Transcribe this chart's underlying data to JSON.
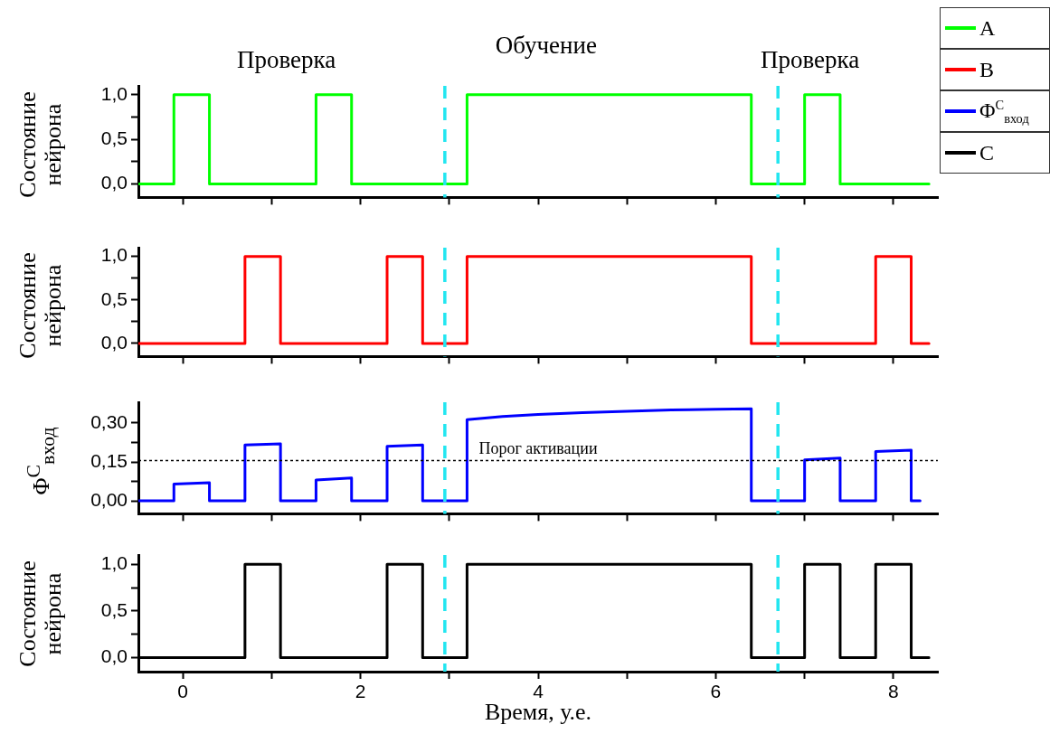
{
  "chart_data": [
    {
      "type": "step",
      "ylabel": "Состояние нейрона",
      "legend": "top right",
      "tick_labels": "y",
      "xlim": [
        -0.5,
        8.5
      ],
      "xticks": [
        0,
        {
          "value": 1,
          "label": null
        },
        2,
        {
          "value": 3,
          "label": null
        },
        4,
        {
          "value": 5,
          "label": null
        },
        6,
        {
          "value": 7,
          "label": null
        },
        8
      ],
      "ylim": [
        -0.15,
        1.1
      ],
      "yticks": [
        {
          "value": 0,
          "label": "0,0"
        },
        {
          "value": 0.25,
          "label": null
        },
        {
          "value": 0.5,
          "label": "0,5"
        },
        {
          "value": 0.75,
          "label": null
        },
        {
          "value": 1,
          "label": "1,0"
        }
      ],
      "series": [
        {
          "name": "A",
          "color": "#00ff00",
          "x": [
            -0.5,
            -0.1,
            0.3,
            1.5,
            1.9,
            3.2,
            6.4,
            7.0,
            7.4,
            8.4
          ],
          "values": [
            0,
            1,
            0,
            1,
            0,
            1,
            0,
            1,
            0,
            0
          ]
        }
      ],
      "ref_lines": [
        {
          "axis": "x",
          "value": 2.95,
          "color": "#22e6f0",
          "line_style": "dashed"
        },
        {
          "axis": "x",
          "value": 6.7,
          "color": "#22e6f0",
          "line_style": "dashed"
        }
      ],
      "annotations": [
        "Проверка",
        "Обучение",
        "Проверка"
      ]
    },
    {
      "type": "step",
      "ylabel": "Состояние нейрона",
      "legend": "top right",
      "tick_labels": "y",
      "xlim": [
        -0.5,
        8.5
      ],
      "xticks": [
        0,
        {
          "value": 1,
          "label": null
        },
        2,
        {
          "value": 3,
          "label": null
        },
        4,
        {
          "value": 5,
          "label": null
        },
        6,
        {
          "value": 7,
          "label": null
        },
        8
      ],
      "ylim": [
        -0.15,
        1.1
      ],
      "yticks": [
        {
          "value": 0,
          "label": "0,0"
        },
        {
          "value": 0.25,
          "label": null
        },
        {
          "value": 0.5,
          "label": "0,5"
        },
        {
          "value": 0.75,
          "label": null
        },
        {
          "value": 1,
          "label": "1,0"
        }
      ],
      "series": [
        {
          "name": "B",
          "color": "#ff0000",
          "x": [
            -0.5,
            0.7,
            1.1,
            2.3,
            2.7,
            3.2,
            6.4,
            7.8,
            8.2,
            8.4
          ],
          "values": [
            0,
            1,
            0,
            1,
            0,
            1,
            0,
            1,
            0,
            0
          ]
        }
      ],
      "ref_lines": [
        {
          "axis": "x",
          "value": 2.95,
          "color": "#22e6f0",
          "line_style": "dashed"
        },
        {
          "axis": "x",
          "value": 6.7,
          "color": "#22e6f0",
          "line_style": "dashed"
        }
      ]
    },
    {
      "type": "line",
      "ylabel": "Φ$^{C}$$_{вход}$",
      "legend": "top right",
      "tick_labels": "y",
      "xlim": [
        -0.5,
        8.5
      ],
      "xticks": [
        0,
        {
          "value": 1,
          "label": null
        },
        2,
        {
          "value": 3,
          "label": null
        },
        4,
        {
          "value": 5,
          "label": null
        },
        6,
        {
          "value": 7,
          "label": null
        },
        8
      ],
      "ylim": [
        -0.05,
        0.38
      ],
      "yticks": [
        {
          "value": 0,
          "label": "0,00"
        },
        {
          "value": 0.075,
          "label": null
        },
        {
          "value": 0.15,
          "label": "0,15"
        },
        {
          "value": 0.225,
          "label": null
        },
        {
          "value": 0.3,
          "label": "0,30"
        }
      ],
      "series": [
        {
          "name": "Φ$^{C}$$_{вход}$",
          "color": "#0000ff",
          "x": [
            -0.5,
            -0.1,
            -0.1,
            0.3,
            0.3,
            0.7,
            0.7,
            1.1,
            1.1,
            1.5,
            1.5,
            1.9,
            1.9,
            2.3,
            2.3,
            2.7,
            2.7,
            3.2,
            3.2,
            3.6,
            4.0,
            4.5,
            5.0,
            5.5,
            6.0,
            6.4,
            6.4,
            7.0,
            7.0,
            7.4,
            7.4,
            7.8,
            7.8,
            8.2,
            8.2,
            8.3
          ],
          "values": [
            0,
            0,
            0.065,
            0.07,
            0,
            0,
            0.215,
            0.22,
            0,
            0,
            0.08,
            0.088,
            0,
            0,
            0.21,
            0.215,
            0,
            0,
            0.313,
            0.325,
            0.333,
            0.34,
            0.345,
            0.35,
            0.353,
            0.355,
            0,
            0,
            0.158,
            0.165,
            0,
            0,
            0.19,
            0.195,
            0,
            0
          ]
        }
      ],
      "ref_lines": [
        {
          "axis": "x",
          "value": 2.95,
          "color": "#22e6f0",
          "line_style": "dashed"
        },
        {
          "axis": "x",
          "value": 6.7,
          "color": "#22e6f0",
          "line_style": "dashed"
        },
        {
          "axis": "y",
          "value": 0.155,
          "label": "Порог активации",
          "color": "#000000",
          "line_style": "dotted"
        }
      ]
    },
    {
      "type": "step",
      "ylabel": "Состояние нейрона",
      "xlabel": "Время, у.е.",
      "legend": "top right",
      "xlim": [
        -0.5,
        8.5
      ],
      "xticks": [
        0,
        {
          "value": 1,
          "label": null
        },
        2,
        {
          "value": 3,
          "label": null
        },
        4,
        {
          "value": 5,
          "label": null
        },
        6,
        {
          "value": 7,
          "label": null
        },
        8
      ],
      "ylim": [
        -0.15,
        1.1
      ],
      "yticks": [
        {
          "value": 0,
          "label": "0,0"
        },
        {
          "value": 0.25,
          "label": null
        },
        {
          "value": 0.5,
          "label": "0,5"
        },
        {
          "value": 0.75,
          "label": null
        },
        {
          "value": 1,
          "label": "1,0"
        }
      ],
      "series": [
        {
          "name": "C",
          "color": "#000000",
          "x": [
            -0.5,
            0.7,
            1.1,
            2.3,
            2.7,
            3.2,
            6.4,
            7.0,
            7.4,
            7.8,
            8.2,
            8.4
          ],
          "values": [
            0,
            1,
            0,
            1,
            0,
            1,
            0,
            1,
            0,
            1,
            0,
            0
          ]
        }
      ],
      "ref_lines": [
        {
          "axis": "x",
          "value": 2.95,
          "color": "#22e6f0",
          "line_style": "dashed"
        },
        {
          "axis": "x",
          "value": 6.7,
          "color": "#22e6f0",
          "line_style": "dashed"
        }
      ]
    }
  ]
}
